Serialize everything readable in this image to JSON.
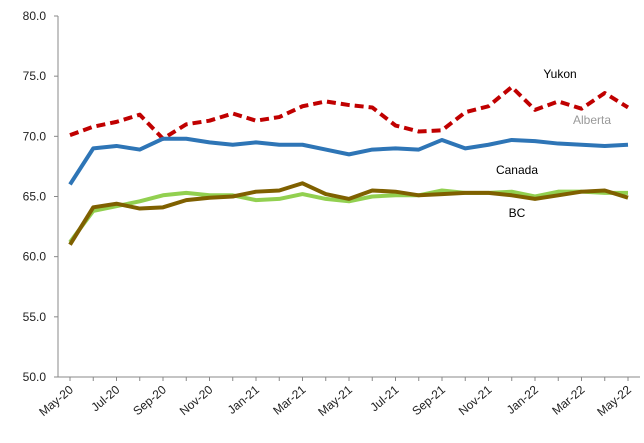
{
  "chart_data": {
    "type": "line",
    "categories": [
      "May-20",
      null,
      "Jul-20",
      null,
      "Sep-20",
      null,
      "Nov-20",
      null,
      "Jan-21",
      null,
      "Mar-21",
      null,
      "May-21",
      null,
      "Jul-21",
      null,
      "Sep-21",
      null,
      "Nov-21",
      null,
      "Jan-22",
      null,
      "Mar-22",
      null,
      "May-22"
    ],
    "series": [
      {
        "name": "Yukon",
        "color": "#c00000",
        "dashed": true,
        "values": [
          70.1,
          70.8,
          71.2,
          71.8,
          69.8,
          71.0,
          71.3,
          71.9,
          71.3,
          71.6,
          72.5,
          72.9,
          72.6,
          72.4,
          70.9,
          70.4,
          70.5,
          72.0,
          72.5,
          74.1,
          72.2,
          72.9,
          72.3,
          73.6,
          72.4
        ]
      },
      {
        "name": "Alberta",
        "color": "#2e75b6",
        "values": [
          66.0,
          69.0,
          69.2,
          68.9,
          69.8,
          69.8,
          69.5,
          69.3,
          69.5,
          69.3,
          69.3,
          68.9,
          68.5,
          68.9,
          69.0,
          68.9,
          69.7,
          69.0,
          69.3,
          69.7,
          69.6,
          69.4,
          69.3,
          69.2,
          69.3
        ]
      },
      {
        "name": "Canada",
        "color": "#92d050",
        "values": [
          61.2,
          63.8,
          64.2,
          64.6,
          65.1,
          65.3,
          65.1,
          65.1,
          64.7,
          64.8,
          65.2,
          64.8,
          64.6,
          65.0,
          65.1,
          65.1,
          65.5,
          65.3,
          65.3,
          65.4,
          65.0,
          65.4,
          65.4,
          65.3,
          65.3
        ]
      },
      {
        "name": "BC",
        "color": "#7f6000",
        "values": [
          61.0,
          64.1,
          64.4,
          64.0,
          64.1,
          64.7,
          64.9,
          65.0,
          65.4,
          65.5,
          66.1,
          65.2,
          64.8,
          65.5,
          65.4,
          65.1,
          65.2,
          65.3,
          65.3,
          65.1,
          64.8,
          65.1,
          65.4,
          65.5,
          64.9
        ]
      }
    ],
    "ylim": [
      50,
      80
    ],
    "yticks": [
      {
        "value": 50,
        "label": "50.0"
      },
      {
        "value": 55,
        "label": "55.0"
      },
      {
        "value": 60,
        "label": "60.0"
      },
      {
        "value": 65,
        "label": "65.0"
      },
      {
        "value": 70,
        "label": "70.0"
      },
      {
        "value": 75,
        "label": "75.0"
      },
      {
        "value": 80,
        "label": "80.0"
      }
    ]
  }
}
